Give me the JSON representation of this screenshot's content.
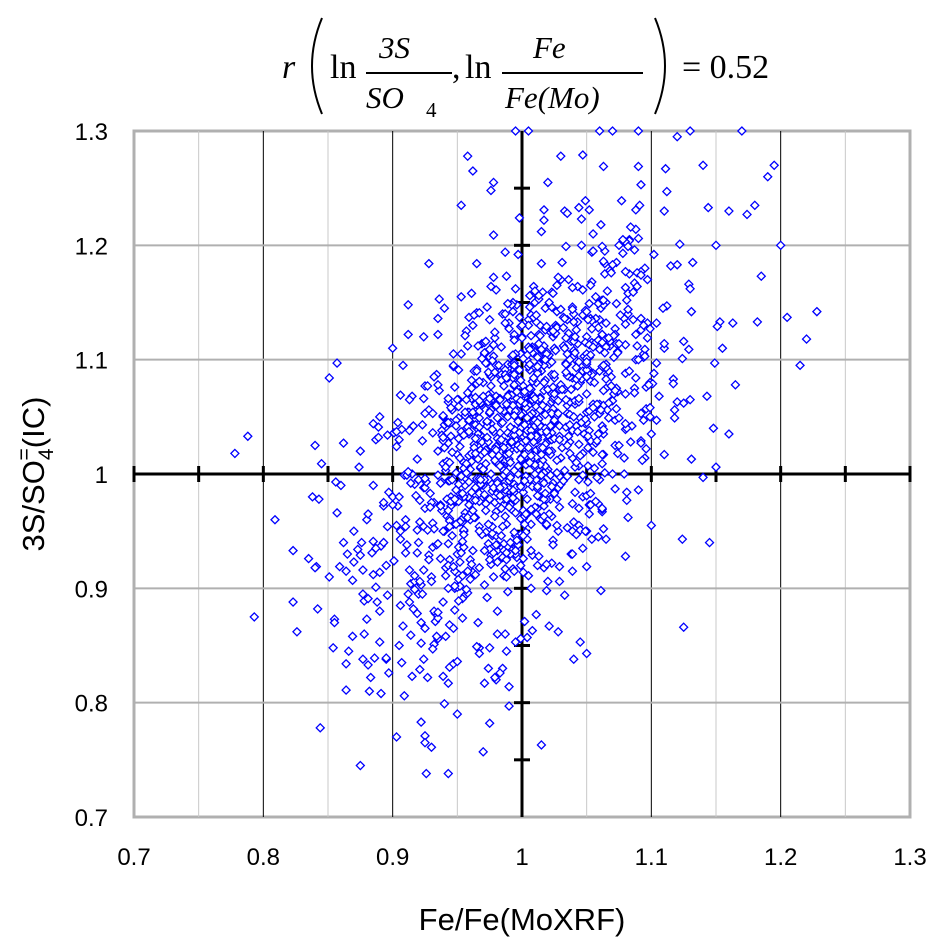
{
  "chart_data": {
    "type": "scatter",
    "title": {
      "r": "r",
      "ln1": "ln",
      "frac1_num": "3S",
      "frac1_den_main": "SO",
      "frac1_den_sub": "4",
      "comma": ",",
      "ln2": "ln",
      "frac2_num": "Fe",
      "frac2_den": "Fe(Mo)",
      "equals": "= 0.52"
    },
    "xlabel": "Fe/Fe(MoXRF)",
    "ylabel": {
      "main": "3S/SO",
      "sub": "4",
      "sup": "=",
      "tail": "(IC)"
    },
    "xlim": [
      0.7,
      1.3
    ],
    "ylim": [
      0.7,
      1.3
    ],
    "x_tick_labels": [
      "0.7",
      "0.8",
      "0.9",
      "1",
      "1.1",
      "1.2",
      "1.3"
    ],
    "y_tick_labels": [
      "0.7",
      "0.8",
      "0.9",
      "1",
      "1.1",
      "1.2",
      "1.3"
    ],
    "grid": true,
    "reference_lines": {
      "x": 1.0,
      "y": 1.0
    },
    "marker": "open-diamond",
    "marker_color": "#0000ff",
    "correlation_r": 0.52,
    "approx_point_count": 1500,
    "series": [
      {
        "values_note_removed": true,
        "points": [
          [
            0.778,
            1.018
          ],
          [
            0.788,
            1.033
          ],
          [
            0.84,
            1.025
          ],
          [
            0.845,
            1.009
          ],
          [
            0.851,
            1.084
          ],
          [
            0.857,
            1.097
          ],
          [
            0.862,
            1.027
          ],
          [
            0.823,
            0.933
          ],
          [
            0.823,
            0.888
          ],
          [
            0.826,
            0.862
          ],
          [
            0.838,
            0.98
          ],
          [
            0.842,
            0.882
          ],
          [
            0.851,
            0.91
          ],
          [
            0.855,
            0.873
          ],
          [
            0.857,
            0.966
          ],
          [
            0.862,
            0.94
          ],
          [
            0.864,
            0.811
          ],
          [
            0.866,
            0.845
          ],
          [
            0.869,
            0.858
          ],
          [
            0.87,
            0.923
          ],
          [
            0.875,
            0.929
          ],
          [
            0.878,
            0.889
          ],
          [
            0.881,
            0.833
          ],
          [
            0.883,
            0.822
          ],
          [
            0.886,
            0.839
          ],
          [
            0.89,
            0.88
          ],
          [
            0.893,
            0.94
          ],
          [
            0.897,
            0.826
          ],
          [
            0.9,
            1.11
          ],
          [
            0.903,
            0.77
          ],
          [
            0.905,
            0.85
          ],
          [
            0.908,
            0.867
          ],
          [
            0.912,
            1.148
          ],
          [
            0.916,
            0.882
          ],
          [
            0.92,
            0.895
          ],
          [
            0.922,
            0.783
          ],
          [
            0.925,
            0.771
          ],
          [
            0.926,
            0.738
          ],
          [
            0.928,
            1.184
          ],
          [
            0.932,
            0.851
          ],
          [
            0.935,
            1.122
          ],
          [
            0.94,
            0.799
          ],
          [
            0.944,
            0.868
          ],
          [
            0.947,
            0.865
          ],
          [
            0.95,
            0.79
          ],
          [
            0.953,
            1.235
          ],
          [
            0.958,
            1.278
          ],
          [
            0.962,
            1.265
          ],
          [
            0.966,
            0.87
          ],
          [
            0.97,
            0.757
          ],
          [
            0.974,
            0.83
          ],
          [
            0.978,
            1.255
          ],
          [
            0.98,
            0.82
          ],
          [
            0.985,
            0.83
          ],
          [
            0.988,
            0.845
          ],
          [
            0.99,
            0.797
          ],
          [
            0.995,
            1.3
          ],
          [
            0.998,
            1.224
          ],
          [
            1.005,
            1.3
          ],
          [
            1.015,
            0.763
          ],
          [
            1.02,
            1.255
          ],
          [
            1.03,
            1.278
          ],
          [
            1.04,
            0.838
          ],
          [
            1.045,
            0.853
          ],
          [
            1.05,
            0.843
          ],
          [
            1.06,
            1.3
          ],
          [
            1.07,
            1.3
          ],
          [
            1.08,
            0.928
          ],
          [
            1.09,
            1.3
          ],
          [
            1.1,
            0.955
          ],
          [
            1.11,
            1.23
          ],
          [
            1.12,
            1.295
          ],
          [
            1.125,
            0.866
          ],
          [
            1.13,
            1.3
          ],
          [
            1.14,
            1.27
          ],
          [
            1.145,
            0.94
          ],
          [
            1.15,
            1.2
          ],
          [
            1.16,
            1.23
          ],
          [
            1.17,
            1.3
          ],
          [
            1.18,
            1.235
          ],
          [
            1.19,
            1.26
          ],
          [
            1.195,
            1.27
          ],
          [
            1.2,
            1.2
          ],
          [
            1.205,
            1.137
          ],
          [
            1.215,
            1.095
          ],
          [
            1.22,
            1.118
          ],
          [
            1.228,
            1.142
          ],
          [
            1.185,
            1.173
          ],
          [
            1.182,
            1.133
          ],
          [
            1.165,
            1.078
          ],
          [
            1.155,
            1.11
          ],
          [
            1.148,
            1.04
          ],
          [
            1.16,
            1.035
          ],
          [
            1.14,
            0.997
          ],
          [
            1.13,
            1.065
          ],
          [
            1.12,
            1.063
          ],
          [
            1.11,
            1.11
          ],
          [
            1.1,
            1.035
          ],
          [
            1.095,
            1.18
          ],
          [
            1.087,
            1.167
          ],
          [
            1.082,
            1.14
          ],
          [
            1.075,
            1.2
          ],
          [
            1.07,
            1.0
          ],
          [
            1.065,
            1.15
          ],
          [
            1.06,
            1.09
          ],
          [
            1.055,
            1.21
          ],
          [
            1.05,
            1.12
          ],
          [
            1.045,
            1.08
          ],
          [
            1.04,
            1.14
          ],
          [
            1.035,
            1.06
          ],
          [
            1.03,
            1.17
          ],
          [
            1.025,
            1.11
          ],
          [
            1.02,
            1.03
          ],
          [
            1.015,
            1.09
          ],
          [
            1.01,
            1.15
          ],
          [
            1.005,
            1.06
          ],
          [
            1.0,
            1.12
          ],
          [
            0.995,
            1.03
          ],
          [
            0.99,
            1.07
          ],
          [
            0.985,
            1.14
          ],
          [
            0.98,
            1.01
          ],
          [
            0.975,
            1.06
          ],
          [
            0.97,
            0.99
          ],
          [
            0.965,
            1.04
          ],
          [
            0.96,
            0.96
          ],
          [
            0.955,
            1.01
          ],
          [
            0.95,
            0.93
          ],
          [
            0.945,
            0.98
          ],
          [
            0.94,
            0.95
          ],
          [
            0.935,
            1.02
          ],
          [
            0.93,
            0.91
          ],
          [
            0.925,
            0.97
          ],
          [
            0.92,
            0.94
          ],
          [
            0.915,
            1.0
          ],
          [
            0.91,
            0.96
          ],
          [
            0.905,
            1.03
          ],
          [
            0.9,
            0.98
          ],
          [
            0.895,
            0.92
          ],
          [
            0.89,
            1.05
          ],
          [
            0.885,
            0.99
          ],
          [
            0.88,
            0.96
          ],
          [
            0.875,
            1.02
          ],
          [
            0.87,
            0.95
          ],
          [
            0.865,
            0.93
          ],
          [
            0.86,
            0.99
          ]
        ]
      }
    ]
  }
}
